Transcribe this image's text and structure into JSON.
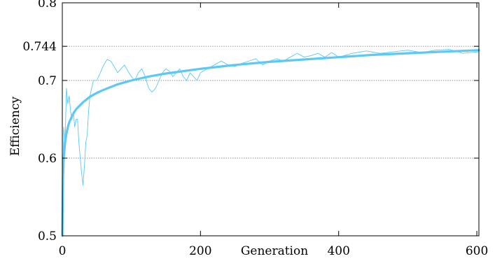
{
  "chart_data": {
    "type": "line",
    "xlabel": "Generation",
    "ylabel": "Efficiency",
    "xlim": [
      0,
      603
    ],
    "ylim": [
      0.5,
      0.8
    ],
    "x_ticks": [
      0,
      200,
      400,
      600
    ],
    "y_ticks": [
      0.5,
      0.6,
      0.7,
      0.744,
      0.8
    ],
    "y_tick_labels": [
      "0.5",
      "0.6",
      "0.7",
      "0.744",
      "0.8"
    ],
    "grid": "horizontal-dotted",
    "colors": {
      "series": "#5bc8f5",
      "grid": "#777777",
      "axis": "#000000"
    },
    "series": [
      {
        "style": "thin",
        "x": [
          0,
          2,
          4,
          6,
          8,
          10,
          12,
          14,
          16,
          18,
          20,
          22,
          24,
          26,
          28,
          30,
          32,
          34,
          36,
          38,
          40,
          45,
          50,
          55,
          60,
          65,
          70,
          75,
          80,
          85,
          90,
          95,
          100,
          105,
          110,
          115,
          120,
          125,
          130,
          135,
          140,
          145,
          150,
          155,
          160,
          165,
          170,
          175,
          180,
          185,
          190,
          195,
          200,
          210,
          220,
          230,
          240,
          250,
          260,
          270,
          280,
          290,
          300,
          310,
          320,
          330,
          340,
          350,
          360,
          370,
          380,
          390,
          400,
          420,
          440,
          460,
          480,
          500,
          520,
          540,
          560,
          580,
          603
        ],
        "values": [
          0.5,
          0.64,
          0.62,
          0.69,
          0.67,
          0.68,
          0.66,
          0.65,
          0.66,
          0.64,
          0.65,
          0.65,
          0.62,
          0.6,
          0.58,
          0.565,
          0.59,
          0.62,
          0.63,
          0.66,
          0.68,
          0.7,
          0.7,
          0.71,
          0.72,
          0.727,
          0.725,
          0.718,
          0.71,
          0.715,
          0.72,
          0.712,
          0.705,
          0.7,
          0.71,
          0.715,
          0.705,
          0.69,
          0.685,
          0.69,
          0.7,
          0.71,
          0.715,
          0.712,
          0.705,
          0.71,
          0.715,
          0.705,
          0.7,
          0.71,
          0.705,
          0.7,
          0.71,
          0.715,
          0.72,
          0.725,
          0.72,
          0.718,
          0.722,
          0.725,
          0.728,
          0.72,
          0.725,
          0.728,
          0.725,
          0.73,
          0.735,
          0.73,
          0.732,
          0.735,
          0.73,
          0.736,
          0.73,
          0.735,
          0.738,
          0.735,
          0.737,
          0.739,
          0.736,
          0.739,
          0.74,
          0.735,
          0.737
        ]
      },
      {
        "style": "thick",
        "x": [
          0,
          1,
          2,
          4,
          6,
          8,
          10,
          15,
          20,
          30,
          40,
          50,
          60,
          80,
          100,
          125,
          150,
          200,
          250,
          300,
          350,
          400,
          450,
          500,
          550,
          603
        ],
        "values": [
          0.5,
          0.575,
          0.6,
          0.62,
          0.632,
          0.64,
          0.646,
          0.656,
          0.663,
          0.672,
          0.679,
          0.684,
          0.688,
          0.695,
          0.7,
          0.705,
          0.709,
          0.715,
          0.72,
          0.724,
          0.727,
          0.73,
          0.733,
          0.735,
          0.737,
          0.739
        ]
      }
    ]
  }
}
